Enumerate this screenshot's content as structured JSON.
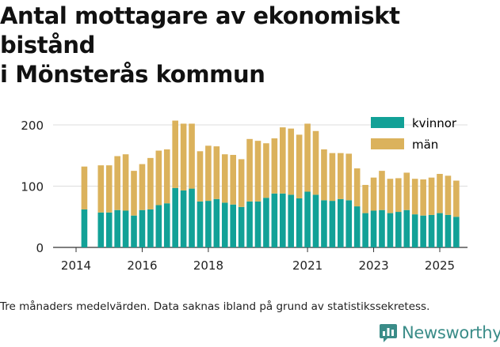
{
  "title_line1": "Antal mottagare av ekonomiskt bistånd",
  "title_line2": "i Mönsterås kommun",
  "footnote": "Tre månaders medelvärden. Data saknas ibland på grund av statistikssekretess.",
  "brand": {
    "name": "Newsworthy",
    "icon": "newsworthy-logo-icon"
  },
  "colors": {
    "kvinnor": "#12a197",
    "man": "#dbb25c",
    "grid": "#dddddd",
    "axis": "#333333",
    "brand": "#3a8c88"
  },
  "chart_data": {
    "type": "bar",
    "stacked": true,
    "title": "Antal mottagare av ekonomiskt bistånd i Mönsterås kommun",
    "xlabel": "",
    "ylabel": "",
    "ylim": [
      0,
      220
    ],
    "yticks": [
      0,
      100,
      200
    ],
    "xticks": [
      {
        "label": "2014",
        "x": 2014.0
      },
      {
        "label": "2016",
        "x": 2016.0
      },
      {
        "label": "2018",
        "x": 2018.0
      },
      {
        "label": "2021",
        "x": 2021.0
      },
      {
        "label": "2023",
        "x": 2023.0
      },
      {
        "label": "2025",
        "x": 2025.0
      }
    ],
    "legend": [
      "kvinnor",
      "män"
    ],
    "legend_position": "top-right",
    "x": [
      2014.25,
      2014.75,
      2015.0,
      2015.25,
      2015.5,
      2015.75,
      2016.0,
      2016.25,
      2016.5,
      2016.75,
      2017.0,
      2017.25,
      2017.5,
      2017.75,
      2018.0,
      2018.25,
      2018.5,
      2018.75,
      2019.0,
      2019.25,
      2019.5,
      2019.75,
      2020.0,
      2020.25,
      2020.5,
      2020.75,
      2021.0,
      2021.25,
      2021.5,
      2021.75,
      2022.0,
      2022.25,
      2022.5,
      2022.75,
      2023.0,
      2023.25,
      2023.5,
      2023.75,
      2024.0,
      2024.25,
      2024.5,
      2024.75,
      2025.0,
      2025.25,
      2025.5
    ],
    "series": [
      {
        "name": "kvinnor",
        "values": [
          62,
          57,
          57,
          61,
          60,
          52,
          61,
          62,
          69,
          72,
          97,
          93,
          96,
          75,
          76,
          79,
          73,
          70,
          66,
          75,
          75,
          81,
          88,
          88,
          86,
          80,
          91,
          86,
          77,
          76,
          79,
          77,
          67,
          56,
          60,
          61,
          56,
          58,
          61,
          54,
          52,
          53,
          56,
          53,
          50
        ]
      },
      {
        "name": "män",
        "values": [
          70,
          77,
          77,
          88,
          92,
          73,
          75,
          84,
          89,
          88,
          110,
          109,
          106,
          82,
          90,
          86,
          79,
          81,
          78,
          102,
          99,
          89,
          90,
          108,
          108,
          104,
          111,
          104,
          83,
          78,
          75,
          76,
          62,
          46,
          54,
          64,
          56,
          55,
          61,
          58,
          59,
          61,
          64,
          64,
          59
        ]
      }
    ]
  }
}
